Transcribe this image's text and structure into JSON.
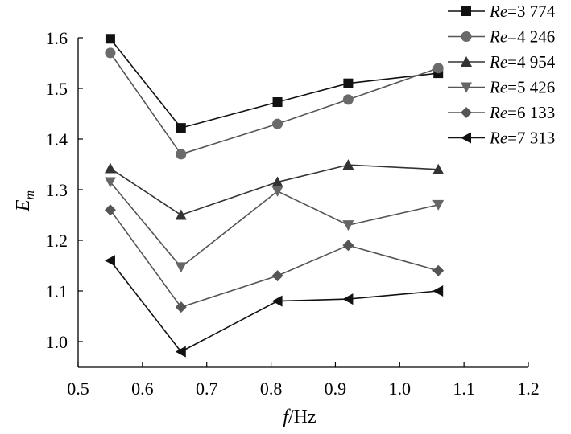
{
  "chart_data": {
    "type": "line",
    "xlabel": {
      "italic": "f",
      "normal": "/Hz"
    },
    "ylabel": {
      "main": "E",
      "sub": "m"
    },
    "xlim": [
      0.5,
      1.2
    ],
    "ylim": [
      0.95,
      1.6
    ],
    "xticks": [
      "0.5",
      "0.6",
      "0.7",
      "0.8",
      "0.9",
      "1.0",
      "1.1",
      "1.2"
    ],
    "yticks": [
      "1.0",
      "1.1",
      "1.2",
      "1.3",
      "1.4",
      "1.5",
      "1.6"
    ],
    "x": [
      0.55,
      0.66,
      0.81,
      0.92,
      1.06
    ],
    "grid": false,
    "legend_position": "top-right",
    "series": [
      {
        "name_prefix": "Re",
        "name_value": "=3 774",
        "marker": "square",
        "line_color": "#111111",
        "marker_color": "#111111",
        "values": [
          1.598,
          1.422,
          1.473,
          1.51,
          1.53
        ]
      },
      {
        "name_prefix": "Re",
        "name_value": "=4 246",
        "marker": "circle",
        "line_color": "#555555",
        "marker_color": "#6a6a6a",
        "values": [
          1.57,
          1.37,
          1.43,
          1.478,
          1.54
        ]
      },
      {
        "name_prefix": "Re",
        "name_value": "=4 954",
        "marker": "triangle-up",
        "line_color": "#333333",
        "marker_color": "#333333",
        "values": [
          1.342,
          1.25,
          1.315,
          1.349,
          1.34
        ]
      },
      {
        "name_prefix": "Re",
        "name_value": "=5 426",
        "marker": "triangle-down",
        "line_color": "#555555",
        "marker_color": "#666666",
        "values": [
          1.315,
          1.147,
          1.297,
          1.23,
          1.27
        ]
      },
      {
        "name_prefix": "Re",
        "name_value": "=6 133",
        "marker": "diamond",
        "line_color": "#555555",
        "marker_color": "#555555",
        "values": [
          1.26,
          1.068,
          1.13,
          1.19,
          1.14
        ]
      },
      {
        "name_prefix": "Re",
        "name_value": "=7 313",
        "marker": "triangle-left",
        "line_color": "#111111",
        "marker_color": "#111111",
        "values": [
          1.16,
          0.98,
          1.08,
          1.084,
          1.1
        ]
      }
    ]
  }
}
